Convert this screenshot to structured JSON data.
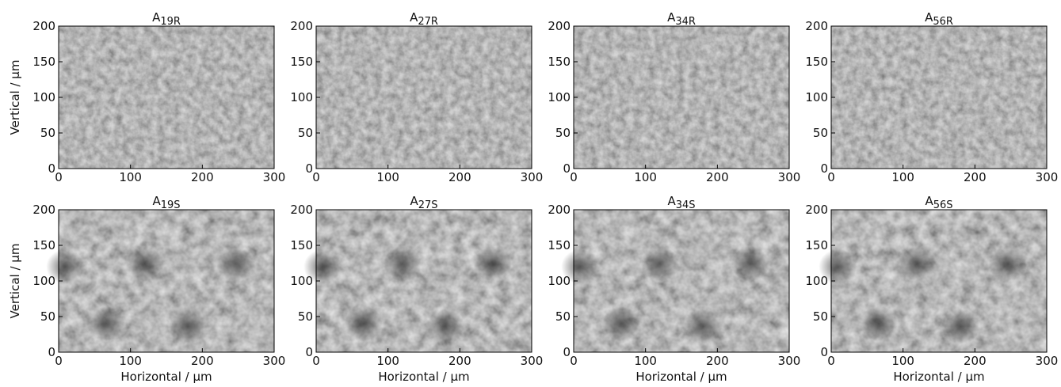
{
  "chart_data": [
    {
      "type": "image",
      "title": "A",
      "subscript": "19R",
      "ylabel": "Vertical / µm",
      "xlim": [
        0,
        300
      ],
      "ylim": [
        0,
        200
      ],
      "xticks": [
        0,
        100,
        200,
        300
      ],
      "yticks": [
        0,
        50,
        100,
        150,
        200
      ]
    },
    {
      "type": "image",
      "title": "A",
      "subscript": "27R",
      "xlim": [
        0,
        300
      ],
      "ylim": [
        0,
        200
      ],
      "xticks": [
        0,
        100,
        200,
        300
      ],
      "yticks": [
        0,
        50,
        100,
        150,
        200
      ]
    },
    {
      "type": "image",
      "title": "A",
      "subscript": "34R",
      "xlim": [
        0,
        300
      ],
      "ylim": [
        0,
        200
      ],
      "xticks": [
        0,
        100,
        200,
        300
      ],
      "yticks": [
        0,
        50,
        100,
        150,
        200
      ]
    },
    {
      "type": "image",
      "title": "A",
      "subscript": "56R",
      "xlim": [
        0,
        300
      ],
      "ylim": [
        0,
        200
      ],
      "xticks": [
        0,
        100,
        200,
        300
      ],
      "yticks": [
        0,
        50,
        100,
        150,
        200
      ]
    },
    {
      "type": "image",
      "title": "A",
      "subscript": "19S",
      "ylabel": "Vertical / µm",
      "xlabel": "Horizontal / µm",
      "xlim": [
        0,
        300
      ],
      "ylim": [
        0,
        200
      ],
      "xticks": [
        0,
        100,
        200,
        300
      ],
      "yticks": [
        0,
        50,
        100,
        150,
        200
      ]
    },
    {
      "type": "image",
      "title": "A",
      "subscript": "27S",
      "xlabel": "Horizontal / µm",
      "xlim": [
        0,
        300
      ],
      "ylim": [
        0,
        200
      ],
      "xticks": [
        0,
        100,
        200,
        300
      ],
      "yticks": [
        0,
        50,
        100,
        150,
        200
      ]
    },
    {
      "type": "image",
      "title": "A",
      "subscript": "34S",
      "xlabel": "Horizontal / µm",
      "xlim": [
        0,
        300
      ],
      "ylim": [
        0,
        200
      ],
      "xticks": [
        0,
        100,
        200,
        300
      ],
      "yticks": [
        0,
        50,
        100,
        150,
        200
      ]
    },
    {
      "type": "image",
      "title": "A",
      "subscript": "56S",
      "xlabel": "Horizontal / µm",
      "xlim": [
        0,
        300
      ],
      "ylim": [
        0,
        200
      ],
      "xticks": [
        0,
        100,
        200,
        300
      ],
      "yticks": [
        0,
        50,
        100,
        150,
        200
      ]
    }
  ]
}
